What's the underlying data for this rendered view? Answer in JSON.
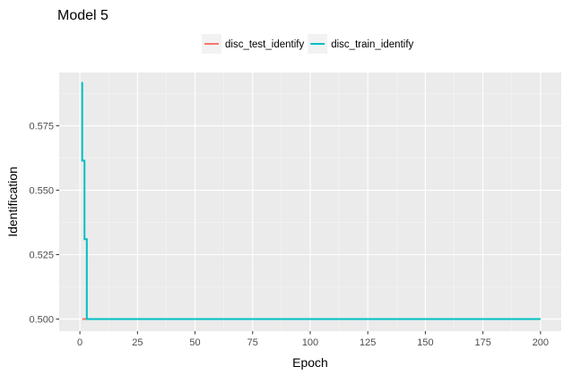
{
  "chart_data": {
    "type": "line",
    "title": "Model 5",
    "xlabel": "Epoch",
    "ylabel": "Identification",
    "xlim": [
      -9,
      209
    ],
    "ylim": [
      0.4953,
      0.5957
    ],
    "x_ticks": [
      0,
      25,
      50,
      75,
      100,
      125,
      150,
      175,
      200
    ],
    "x_tick_labels": [
      "0",
      "25",
      "50",
      "75",
      "100",
      "125",
      "150",
      "175",
      "200"
    ],
    "y_ticks": [
      0.5,
      0.525,
      0.55,
      0.575
    ],
    "y_tick_labels": [
      "0.500",
      "0.525",
      "0.550",
      "0.575"
    ],
    "grid": true,
    "legend_position": "top",
    "series": [
      {
        "name": "disc_test_identify",
        "color": "#F8766D",
        "x": [
          1,
          2,
          3,
          200
        ],
        "y": [
          0.5,
          0.5,
          0.5,
          0.5
        ]
      },
      {
        "name": "disc_train_identify",
        "color": "#00BFC4",
        "x": [
          1,
          1,
          2,
          2,
          3,
          3,
          200
        ],
        "y": [
          0.592,
          0.5615,
          0.5615,
          0.531,
          0.531,
          0.5,
          0.5
        ]
      }
    ]
  }
}
